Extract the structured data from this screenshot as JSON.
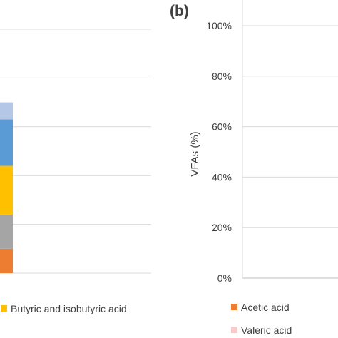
{
  "chart_data": [
    {
      "type": "bar",
      "stacked": true,
      "categories": [
        ""
      ],
      "series": [
        {
          "name": "",
          "color": "#ED7D31",
          "values": [
            10
          ]
        },
        {
          "name": "",
          "color": "#A5A5A5",
          "values": [
            14
          ]
        },
        {
          "name": "",
          "color": "#FFC000",
          "values": [
            20
          ]
        },
        {
          "name": "Butyric and isobutyric acid",
          "color": "#FFC000",
          "values": [
            0
          ]
        },
        {
          "name": "",
          "color": "#5B9BD5",
          "values": [
            19
          ]
        },
        {
          "name": "",
          "color": "#B4C7E7",
          "values": [
            7
          ]
        }
      ],
      "ylim": [
        0,
        100
      ],
      "grid": true,
      "legend": "bottom"
    },
    {
      "type": "bar",
      "stacked": true,
      "panel_label": "(b)",
      "categories": [],
      "series": [
        {
          "name": "Acetic acid",
          "color": "#ED7D31",
          "values": []
        },
        {
          "name": "Valeric acid",
          "color": "#F4CCCC",
          "values": []
        }
      ],
      "ylabel": "VFAs (%)",
      "yticks": [
        "0%",
        "20%",
        "40%",
        "60%",
        "80%",
        "100%"
      ],
      "ylim": [
        0,
        100
      ],
      "grid": true,
      "legend": "bottom"
    }
  ]
}
